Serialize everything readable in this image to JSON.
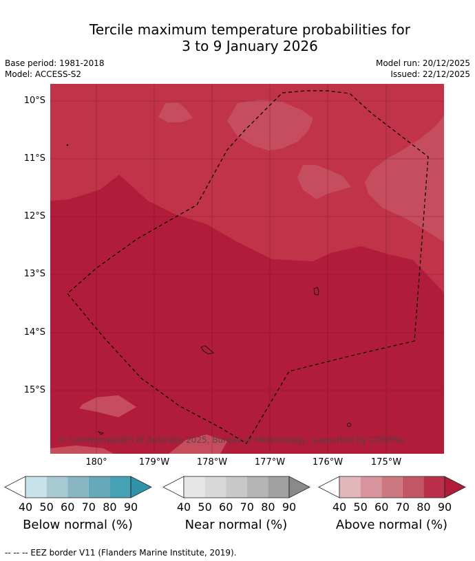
{
  "title_line1": "Tercile maximum temperature probabilities for",
  "title_line2": "3 to 9 January 2026",
  "base_period": "Base period: 1981-2018",
  "model": "Model: ACCESS-S2",
  "model_run": "Model run: 20/12/2025",
  "issued": "Issued: 22/12/2025",
  "lat_labels": [
    "10°S",
    "11°S",
    "12°S",
    "13°S",
    "14°S",
    "15°S"
  ],
  "lon_labels": [
    "180°",
    "179°W",
    "178°W",
    "177°W",
    "176°W",
    "175°W"
  ],
  "copyright": "© Commonwealth of Australia 2025, Bureau of Meteorology, supported by COSPPac",
  "legends": {
    "below": {
      "title": "Below normal (%)",
      "ticks": [
        "40",
        "50",
        "60",
        "70",
        "80",
        "90"
      ],
      "colors": [
        "#ffffff",
        "#c9e2ea",
        "#a7c9d1",
        "#88b6c3",
        "#68a9b9",
        "#47a1b4",
        "#2f93aa"
      ]
    },
    "near": {
      "title": "Near normal (%)",
      "ticks": [
        "40",
        "50",
        "60",
        "70",
        "80",
        "90"
      ],
      "colors": [
        "#ffffff",
        "#e6e6e6",
        "#d8d8d8",
        "#c8c8c8",
        "#b5b5b5",
        "#a1a1a1",
        "#8a8a8a"
      ]
    },
    "above": {
      "title": "Above normal (%)",
      "ticks": [
        "40",
        "50",
        "60",
        "70",
        "80",
        "90"
      ],
      "colors": [
        "#ffffff",
        "#e2b8bd",
        "#d8959d",
        "#cd7781",
        "#c35765",
        "#ba2f4a",
        "#b01c3a"
      ]
    }
  },
  "map_colors": {
    "above_80_90": "#b91d3b",
    "above_70_80": "#c13349",
    "above_60_70": "#c44a5c"
  },
  "footer": "--  --  -- EEZ border V11 (Flanders Marine Institute, 2019)."
}
